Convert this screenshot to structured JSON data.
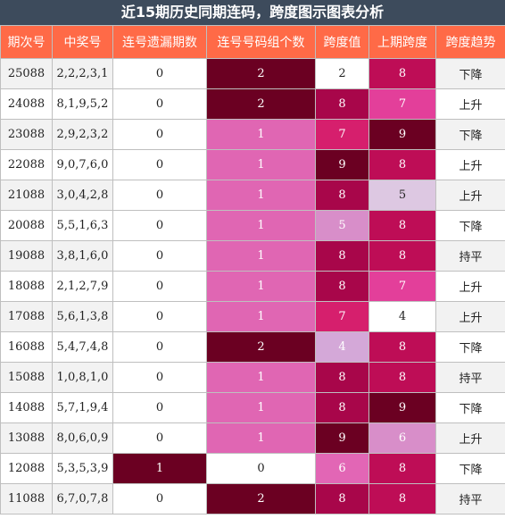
{
  "title": "近15期历史同期连码，跨度图示图表分析",
  "headers": [
    "期次号",
    "中奖号",
    "连号遗漏期数",
    "连号号码组个数",
    "跨度值",
    "上期跨度",
    "跨度趋势"
  ],
  "rows": [
    {
      "period": "25088",
      "numbers": "2,2,2,3,1",
      "miss": "0",
      "groups": "2",
      "span": "2",
      "prev_span": "8",
      "trend": "下降"
    },
    {
      "period": "24088",
      "numbers": "8,1,9,5,2",
      "miss": "0",
      "groups": "2",
      "span": "8",
      "prev_span": "7",
      "trend": "上升"
    },
    {
      "period": "23088",
      "numbers": "2,9,2,3,2",
      "miss": "0",
      "groups": "1",
      "span": "7",
      "prev_span": "9",
      "trend": "下降"
    },
    {
      "period": "22088",
      "numbers": "9,0,7,6,0",
      "miss": "0",
      "groups": "1",
      "span": "9",
      "prev_span": "8",
      "trend": "上升"
    },
    {
      "period": "21088",
      "numbers": "3,0,4,2,8",
      "miss": "0",
      "groups": "1",
      "span": "8",
      "prev_span": "5",
      "trend": "上升"
    },
    {
      "period": "20088",
      "numbers": "5,5,1,6,3",
      "miss": "0",
      "groups": "1",
      "span": "5",
      "prev_span": "8",
      "trend": "下降"
    },
    {
      "period": "19088",
      "numbers": "3,8,1,6,0",
      "miss": "0",
      "groups": "1",
      "span": "8",
      "prev_span": "8",
      "trend": "持平"
    },
    {
      "period": "18088",
      "numbers": "2,1,2,7,9",
      "miss": "0",
      "groups": "1",
      "span": "8",
      "prev_span": "7",
      "trend": "上升"
    },
    {
      "period": "17088",
      "numbers": "5,6,1,3,8",
      "miss": "0",
      "groups": "1",
      "span": "7",
      "prev_span": "4",
      "trend": "上升"
    },
    {
      "period": "16088",
      "numbers": "5,4,7,4,8",
      "miss": "0",
      "groups": "2",
      "span": "4",
      "prev_span": "8",
      "trend": "下降"
    },
    {
      "period": "15088",
      "numbers": "1,0,8,1,0",
      "miss": "0",
      "groups": "1",
      "span": "8",
      "prev_span": "8",
      "trend": "持平"
    },
    {
      "period": "14088",
      "numbers": "5,7,1,9,4",
      "miss": "0",
      "groups": "1",
      "span": "8",
      "prev_span": "9",
      "trend": "下降"
    },
    {
      "period": "13088",
      "numbers": "8,0,6,0,9",
      "miss": "0",
      "groups": "1",
      "span": "9",
      "prev_span": "6",
      "trend": "上升"
    },
    {
      "period": "12088",
      "numbers": "5,3,5,3,9",
      "miss": "1",
      "groups": "0",
      "span": "6",
      "prev_span": "8",
      "trend": "下降"
    },
    {
      "period": "11088",
      "numbers": "6,7,0,7,8",
      "miss": "0",
      "groups": "2",
      "span": "8",
      "prev_span": "8",
      "trend": "持平"
    }
  ],
  "palette": {
    "group": {
      "0": "#ffffff",
      "1": "#e066b3",
      "2": "#6b0022"
    },
    "miss": {
      "0": "#ffffff",
      "1": "#6b0022"
    },
    "span": {
      "2": "#ffffff",
      "4": "#d4a8d8",
      "5": "#d88ec9",
      "6": "#e266b5",
      "7": "#d61f6d",
      "8": "#a8064a",
      "9": "#6b0022"
    },
    "prev_span": {
      "4": "#ffffff",
      "5": "#ddc8e2",
      "6": "#d88ec9",
      "7": "#e33f9a",
      "8": "#be0d56",
      "9": "#6b0022"
    },
    "dark_text": [
      "#ffffff",
      "#ddc8e2"
    ]
  }
}
